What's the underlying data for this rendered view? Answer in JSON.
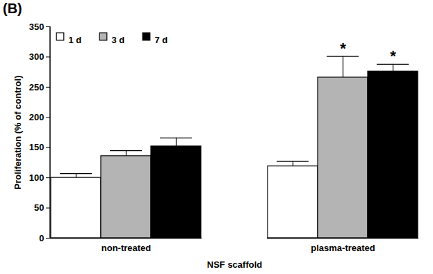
{
  "chart_data": {
    "type": "bar",
    "title": "(B)",
    "x_label": "NSF scaffold",
    "y_label": "Proliferation (% of control)",
    "categories": [
      "non-treated",
      "plasma-treated"
    ],
    "series": [
      {
        "name": "1 d",
        "color": "#ffffff",
        "values": [
          100,
          119
        ],
        "errors": [
          7,
          8
        ],
        "annotations": [
          null,
          null
        ]
      },
      {
        "name": "3 d",
        "color": "#b4b4b4",
        "values": [
          136,
          266
        ],
        "errors": [
          9,
          35
        ],
        "annotations": [
          null,
          "*"
        ]
      },
      {
        "name": "7 d",
        "color": "#000000",
        "values": [
          152,
          276
        ],
        "errors": [
          14,
          12
        ],
        "annotations": [
          null,
          "*"
        ]
      }
    ],
    "ylim": [
      0,
      350
    ],
    "yticks": [
      0,
      50,
      100,
      150,
      200,
      250,
      300,
      350
    ],
    "legend": "upper left",
    "grid": false
  }
}
